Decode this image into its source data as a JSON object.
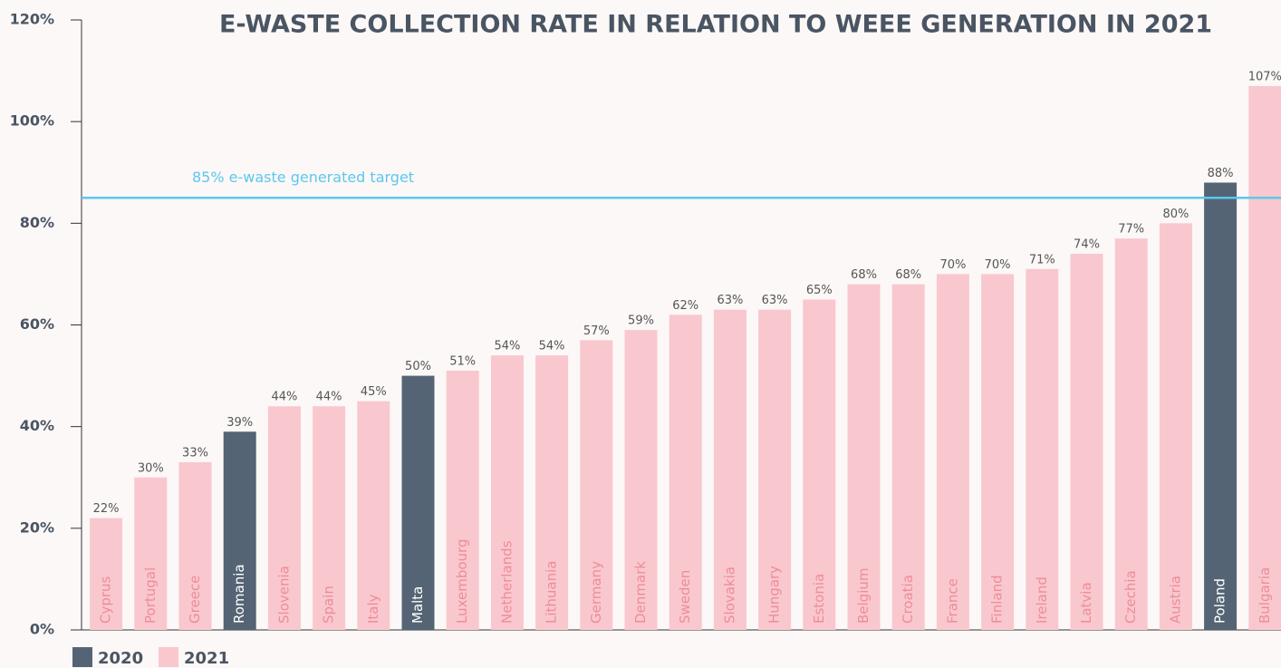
{
  "chart_data": {
    "type": "bar",
    "title": "E-WASTE COLLECTION RATE IN RELATION TO WEEE GENERATION IN 2021",
    "categories": [
      "Cyprus",
      "Portugal",
      "Greece",
      "Romania",
      "Slovenia",
      "Spain",
      "Italy",
      "Malta",
      "Luxembourg",
      "Netherlands",
      "Lithuania",
      "Germany",
      "Denmark",
      "Sweden",
      "Slovakia",
      "Hungary",
      "Estonia",
      "Belgium",
      "Croatia",
      "France",
      "Finland",
      "Ireland",
      "Latvia",
      "Czechia",
      "Austria",
      "Poland",
      "Bulgaria"
    ],
    "series": [
      {
        "name": "2020",
        "color": "#546474",
        "values": [
          null,
          null,
          null,
          39,
          null,
          null,
          null,
          50,
          null,
          null,
          null,
          null,
          null,
          null,
          null,
          null,
          null,
          null,
          null,
          null,
          null,
          null,
          null,
          null,
          null,
          88,
          null
        ],
        "value_labels": [
          null,
          null,
          null,
          "39%",
          null,
          null,
          null,
          "50%",
          null,
          null,
          null,
          null,
          null,
          null,
          null,
          null,
          null,
          null,
          null,
          null,
          null,
          null,
          null,
          null,
          null,
          "88%",
          null
        ]
      },
      {
        "name": "2021",
        "color": "#f8c8ce",
        "values": [
          22,
          30,
          33,
          null,
          44,
          44,
          45,
          null,
          51,
          54,
          54,
          57,
          59,
          62,
          63,
          63,
          65,
          68,
          68,
          70,
          70,
          71,
          74,
          77,
          80,
          null,
          107
        ],
        "value_labels": [
          "22%",
          "30%",
          "33%",
          null,
          "44%",
          "44%",
          "45%",
          null,
          "51%",
          "54%",
          "54%",
          "57%",
          "59%",
          "62%",
          "63%",
          "63%",
          "65%",
          "68%",
          "68%",
          "70%",
          "70%",
          "71%",
          "74%",
          "77%",
          "80%",
          null,
          "107%"
        ]
      }
    ],
    "ylim": [
      0,
      120
    ],
    "yticks": [
      {
        "value": 0,
        "label": "0%"
      },
      {
        "value": 20,
        "label": "20%"
      },
      {
        "value": 40,
        "label": "40%"
      },
      {
        "value": 60,
        "label": "60%"
      },
      {
        "value": 80,
        "label": "80%"
      },
      {
        "value": 100,
        "label": "100%"
      },
      {
        "value": 120,
        "label": "120%"
      }
    ],
    "annotations": [
      {
        "text": "85% e-waste generated target",
        "value": 85,
        "color": "#5bc8ee"
      }
    ],
    "legend": "bottom-left"
  }
}
